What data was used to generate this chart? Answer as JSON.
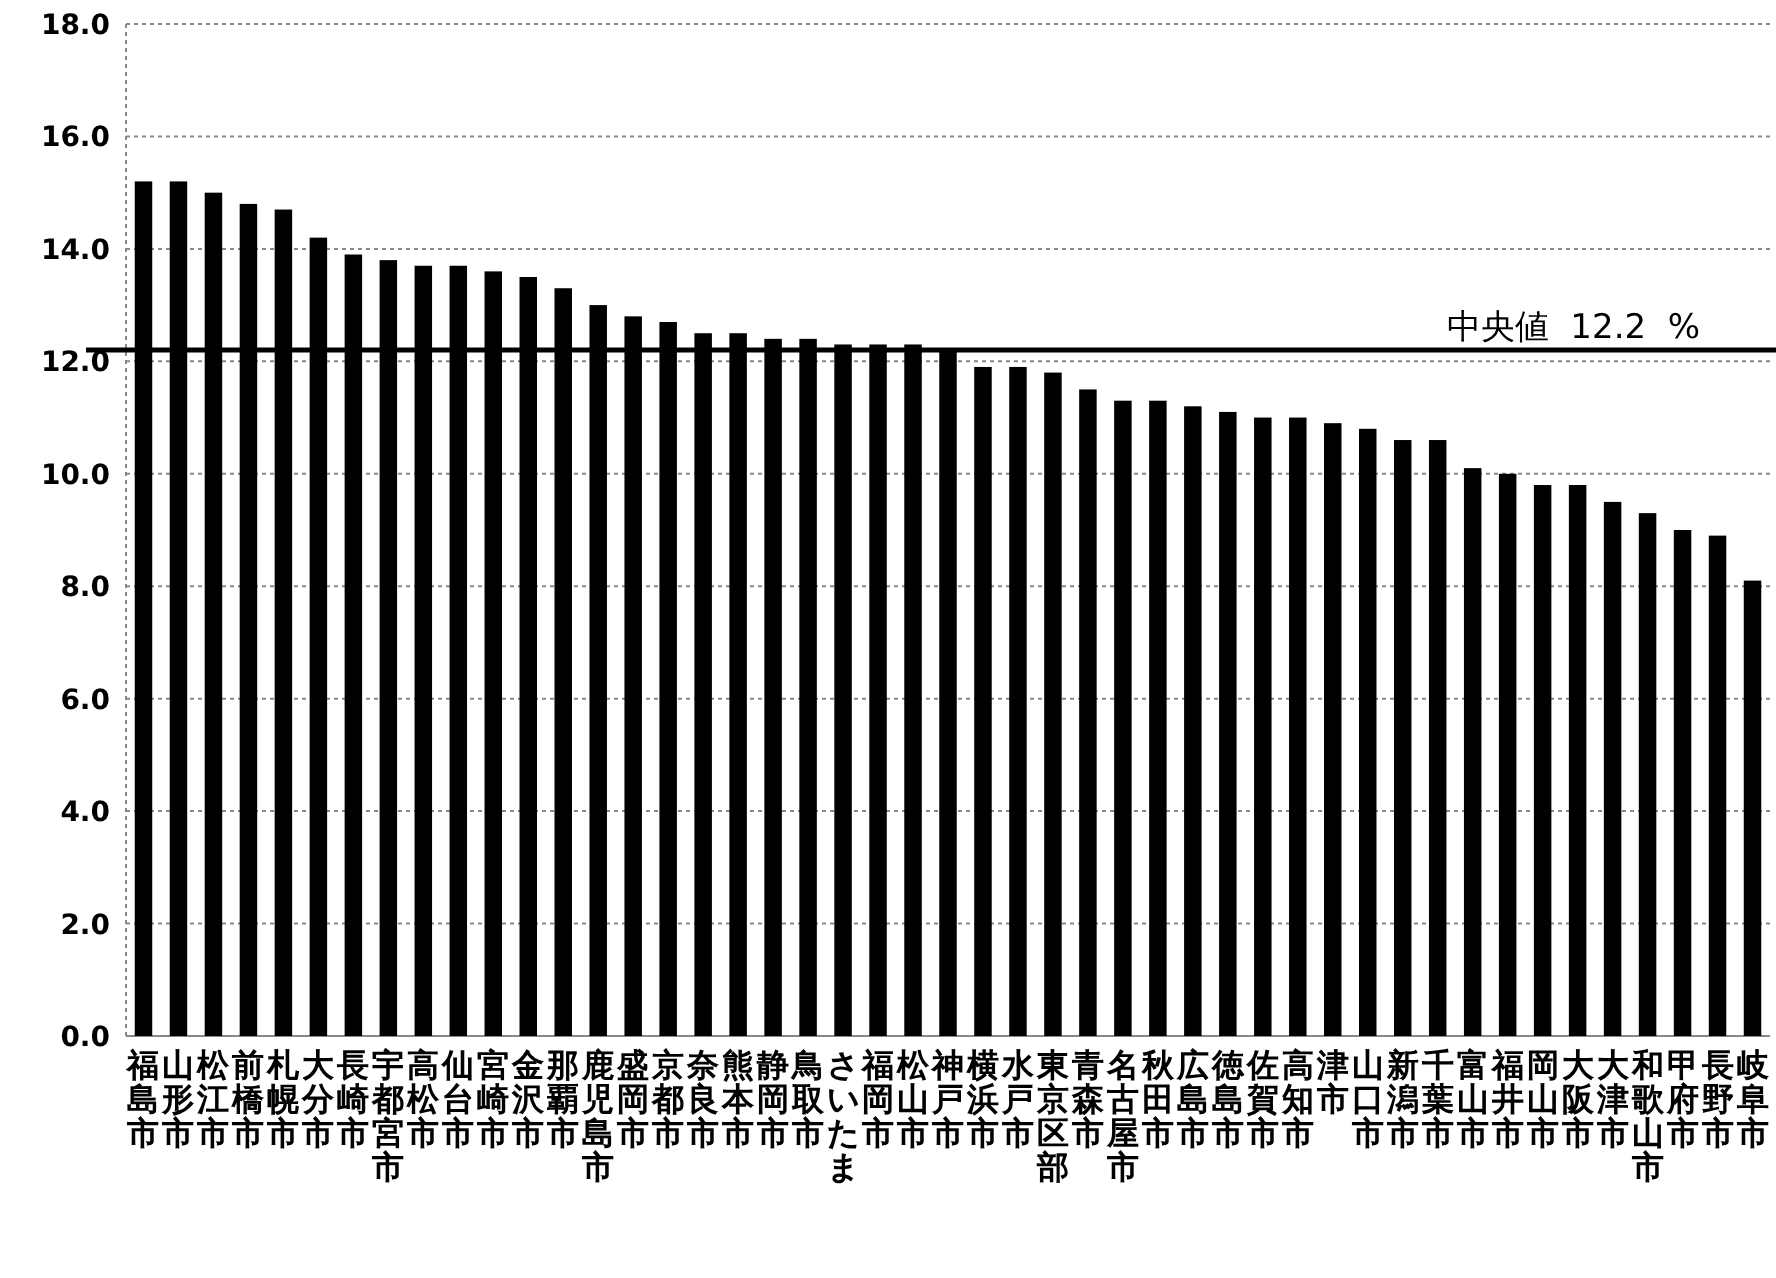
{
  "chart_data": {
    "type": "bar",
    "categories": [
      "福島市",
      "山形市",
      "松江市",
      "前橋市",
      "札幌市",
      "大分市",
      "長崎市",
      "宇都宮市",
      "高松市",
      "仙台市",
      "宮崎市",
      "金沢市",
      "那覇市",
      "鹿児島市",
      "盛岡市",
      "京都市",
      "奈良市",
      "熊本市",
      "静岡市",
      "鳥取市",
      "さいたま",
      "福岡市",
      "松山市",
      "神戸市",
      "横浜市",
      "水戸市",
      "東京区部",
      "青森市",
      "名古屋市",
      "秋田市",
      "広島市",
      "徳島市",
      "佐賀市",
      "高知市",
      "津市",
      "山口市",
      "新潟市",
      "千葉市",
      "富山市",
      "福井市",
      "岡山市",
      "大阪市",
      "大津市",
      "和歌山市",
      "甲府市",
      "長野市",
      "岐阜市"
    ],
    "values": [
      15.2,
      15.2,
      15.0,
      14.8,
      14.7,
      14.2,
      13.9,
      13.8,
      13.7,
      13.7,
      13.6,
      13.5,
      13.3,
      13.0,
      12.8,
      12.7,
      12.5,
      12.5,
      12.4,
      12.4,
      12.3,
      12.3,
      12.3,
      12.2,
      11.9,
      11.9,
      11.8,
      11.5,
      11.3,
      11.3,
      11.2,
      11.1,
      11.0,
      11.0,
      10.9,
      10.8,
      10.6,
      10.6,
      10.1,
      10.0,
      9.8,
      9.8,
      9.5,
      9.3,
      9.0,
      8.9,
      8.1
    ],
    "color": "#000000",
    "ylim": [
      0,
      18
    ],
    "yticks": [
      {
        "value": 0,
        "label": "0.0"
      },
      {
        "value": 2,
        "label": "2.0"
      },
      {
        "value": 4,
        "label": "4.0"
      },
      {
        "value": 6,
        "label": "6.0"
      },
      {
        "value": 8,
        "label": "8.0"
      },
      {
        "value": 10,
        "label": "10.0"
      },
      {
        "value": 12,
        "label": "12.0"
      },
      {
        "value": 14,
        "label": "14.0"
      },
      {
        "value": 16,
        "label": "16.0"
      },
      {
        "value": 18,
        "label": "18.0"
      }
    ],
    "grid": "y",
    "ref_lines": [
      {
        "axis": "y",
        "value": 12.2,
        "label": "中央値  12.2  %",
        "color": "#000000"
      }
    ]
  }
}
